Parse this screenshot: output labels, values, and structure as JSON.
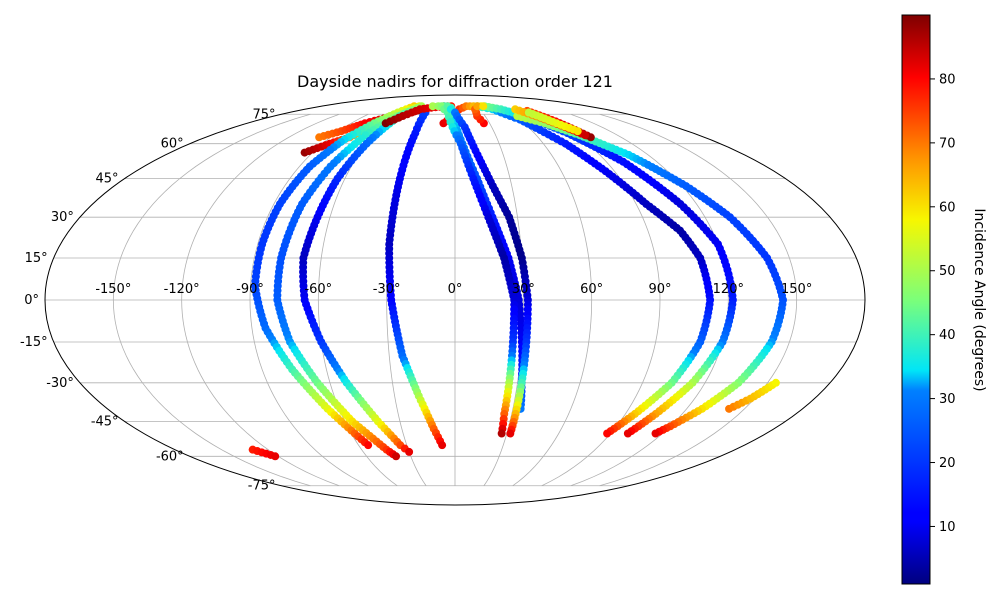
{
  "chart_data": {
    "type": "scatter",
    "projection": "mollweide",
    "title": "Dayside nadirs for diffraction order 121",
    "grid": true,
    "x_ticks": [
      "-150°",
      "-120°",
      "-90°",
      "-60°",
      "-30°",
      "0°",
      "30°",
      "60°",
      "90°",
      "120°",
      "150°"
    ],
    "y_ticks": [
      "75°",
      "60°",
      "45°",
      "30°",
      "15°",
      "0°",
      "-15°",
      "-30°",
      "-45°",
      "-60°",
      "-75°"
    ],
    "colorbar": {
      "label": "Incidence Angle (degrees)",
      "colormap": "jet",
      "range": [
        1,
        90
      ],
      "ticks": [
        "10",
        "20",
        "30",
        "40",
        "50",
        "60",
        "70",
        "80"
      ]
    },
    "tracks": [
      {
        "nodes": [
          [
            -98,
            63,
            70
          ],
          [
            -88,
            66,
            74
          ],
          [
            -78,
            70,
            80
          ],
          [
            -62,
            74,
            84
          ],
          [
            -48,
            76,
            86
          ],
          [
            -40,
            78,
            88
          ]
        ]
      },
      {
        "nodes": [
          [
            -95,
            56,
            88
          ],
          [
            -85,
            60,
            82
          ],
          [
            -76,
            63,
            70
          ],
          [
            -70,
            68,
            58
          ],
          [
            -62,
            72,
            46
          ],
          [
            -52,
            76,
            38
          ],
          [
            -42,
            78,
            30
          ],
          [
            -32,
            76,
            22
          ],
          [
            -30,
            65,
            15
          ],
          [
            -30,
            45,
            10
          ],
          [
            -30,
            20,
            6
          ],
          [
            -28,
            0,
            12
          ],
          [
            -24,
            -20,
            28
          ],
          [
            -18,
            -35,
            50
          ],
          [
            -12,
            -48,
            72
          ],
          [
            -8,
            -55,
            82
          ]
        ]
      },
      {
        "nodes": [
          [
            -55,
            80,
            62
          ],
          [
            -62,
            76,
            54
          ],
          [
            -70,
            70,
            44
          ],
          [
            -78,
            62,
            34
          ],
          [
            -84,
            50,
            26
          ],
          [
            -87,
            35,
            22
          ],
          [
            -88,
            20,
            20
          ],
          [
            -88,
            5,
            22
          ],
          [
            -84,
            -10,
            28
          ],
          [
            -76,
            -25,
            40
          ],
          [
            -66,
            -40,
            56
          ],
          [
            -58,
            -50,
            72
          ],
          [
            -54,
            -55,
            80
          ]
        ]
      },
      {
        "nodes": [
          [
            -48,
            80,
            56
          ],
          [
            -58,
            74,
            48
          ],
          [
            -66,
            64,
            38
          ],
          [
            -72,
            50,
            30
          ],
          [
            -76,
            35,
            26
          ],
          [
            -78,
            15,
            24
          ],
          [
            -78,
            0,
            26
          ],
          [
            -74,
            -15,
            32
          ],
          [
            -66,
            -30,
            44
          ],
          [
            -56,
            -45,
            60
          ],
          [
            -44,
            -57,
            76
          ],
          [
            -40,
            -60,
            84
          ]
        ]
      },
      {
        "nodes": [
          [
            -45,
            80,
            50
          ],
          [
            -55,
            74,
            40
          ],
          [
            -60,
            60,
            28
          ],
          [
            -64,
            45,
            18
          ],
          [
            -66,
            30,
            10
          ],
          [
            -68,
            15,
            6
          ],
          [
            -66,
            0,
            10
          ],
          [
            -60,
            -15,
            20
          ],
          [
            -52,
            -30,
            36
          ],
          [
            -42,
            -45,
            56
          ],
          [
            -34,
            -55,
            74
          ],
          [
            -30,
            -58,
            82
          ]
        ]
      },
      {
        "nodes": [
          [
            -60,
            70,
            90
          ],
          [
            -52,
            74,
            86
          ],
          [
            -42,
            78,
            84
          ],
          [
            -30,
            79,
            82
          ],
          [
            -15,
            80,
            80
          ],
          [
            -5,
            80,
            78
          ]
        ]
      },
      {
        "nodes": [
          [
            -30,
            80,
            50
          ],
          [
            -15,
            80,
            46
          ],
          [
            -5,
            79,
            40
          ]
        ]
      },
      {
        "nodes": [
          [
            -10,
            70,
            82
          ],
          [
            -2,
            74,
            80
          ],
          [
            5,
            78,
            76
          ],
          [
            15,
            80,
            70
          ],
          [
            25,
            80,
            64
          ],
          [
            35,
            80,
            58
          ],
          [
            45,
            79,
            54
          ],
          [
            55,
            77,
            50
          ],
          [
            62,
            74,
            48
          ]
        ]
      },
      {
        "nodes": [
          [
            -15,
            80,
            40
          ],
          [
            -5,
            78,
            36
          ],
          [
            0,
            70,
            34
          ],
          [
            5,
            60,
            30
          ],
          [
            12,
            45,
            24
          ],
          [
            18,
            30,
            16
          ],
          [
            24,
            15,
            10
          ],
          [
            28,
            0,
            8
          ],
          [
            30,
            -15,
            10
          ],
          [
            32,
            -30,
            20
          ],
          [
            34,
            -40,
            30
          ]
        ]
      },
      {
        "nodes": [
          [
            -18,
            80,
            46
          ],
          [
            -8,
            76,
            42
          ],
          [
            -2,
            68,
            36
          ],
          [
            4,
            60,
            26
          ],
          [
            10,
            45,
            16
          ],
          [
            16,
            30,
            8
          ],
          [
            22,
            15,
            4
          ],
          [
            26,
            0,
            8
          ],
          [
            26,
            -15,
            20
          ],
          [
            26,
            -30,
            50
          ],
          [
            26,
            -42,
            72
          ],
          [
            27,
            -50,
            86
          ]
        ]
      },
      {
        "nodes": [
          [
            -10,
            80,
            42
          ],
          [
            0,
            76,
            30
          ],
          [
            8,
            68,
            20
          ],
          [
            14,
            55,
            12
          ],
          [
            20,
            42,
            6
          ],
          [
            26,
            30,
            3
          ],
          [
            30,
            15,
            2
          ],
          [
            32,
            0,
            8
          ],
          [
            32,
            -15,
            20
          ],
          [
            32,
            -30,
            40
          ],
          [
            32,
            -42,
            64
          ],
          [
            32,
            -50,
            82
          ]
        ]
      },
      {
        "nodes": [
          [
            30,
            80,
            42
          ],
          [
            45,
            78,
            34
          ],
          [
            60,
            72,
            26
          ],
          [
            75,
            60,
            16
          ],
          [
            85,
            48,
            10
          ],
          [
            95,
            35,
            6
          ],
          [
            105,
            25,
            4
          ],
          [
            110,
            15,
            6
          ],
          [
            112,
            0,
            14
          ],
          [
            110,
            -15,
            26
          ],
          [
            104,
            -30,
            44
          ],
          [
            95,
            -42,
            62
          ],
          [
            88,
            -50,
            80
          ]
        ]
      },
      {
        "nodes": [
          [
            40,
            80,
            46
          ],
          [
            55,
            78,
            40
          ],
          [
            70,
            74,
            32
          ],
          [
            85,
            65,
            22
          ],
          [
            100,
            52,
            14
          ],
          [
            112,
            35,
            8
          ],
          [
            120,
            20,
            10
          ],
          [
            122,
            0,
            16
          ],
          [
            120,
            -15,
            30
          ],
          [
            114,
            -30,
            50
          ],
          [
            106,
            -42,
            66
          ],
          [
            100,
            -50,
            82
          ]
        ]
      },
      {
        "nodes": [
          [
            62,
            74,
            52
          ],
          [
            78,
            70,
            48
          ],
          [
            92,
            64,
            42
          ],
          [
            108,
            55,
            34
          ],
          [
            122,
            42,
            26
          ],
          [
            132,
            30,
            22
          ],
          [
            140,
            15,
            20
          ],
          [
            144,
            0,
            24
          ],
          [
            142,
            -15,
            32
          ],
          [
            136,
            -30,
            46
          ],
          [
            128,
            -40,
            60
          ],
          [
            120,
            -47,
            74
          ],
          [
            116,
            -50,
            82
          ]
        ]
      },
      {
        "nodes": [
          [
            25,
            70,
            80
          ],
          [
            22,
            74,
            76
          ],
          [
            24,
            78,
            72
          ],
          [
            30,
            80,
            66
          ],
          [
            38,
            80,
            60
          ]
        ]
      },
      {
        "nodes": [
          [
            82,
            77,
            74
          ],
          [
            90,
            71,
            80
          ],
          [
            98,
            63,
            88
          ]
        ]
      },
      {
        "nodes": [
          [
            72,
            78,
            62
          ],
          [
            82,
            73,
            70
          ],
          [
            90,
            68,
            78
          ],
          [
            96,
            64,
            84
          ]
        ]
      },
      {
        "nodes": [
          [
            80,
            76,
            52
          ],
          [
            88,
            70,
            56
          ],
          [
            95,
            66,
            60
          ]
        ]
      },
      {
        "nodes": [
          [
            -130,
            -57,
            78
          ],
          [
            -122,
            -60,
            82
          ]
        ]
      },
      {
        "nodes": [
          [
            142,
            -40,
            70
          ],
          [
            148,
            -36,
            64
          ],
          [
            154,
            -30,
            58
          ]
        ]
      }
    ]
  }
}
